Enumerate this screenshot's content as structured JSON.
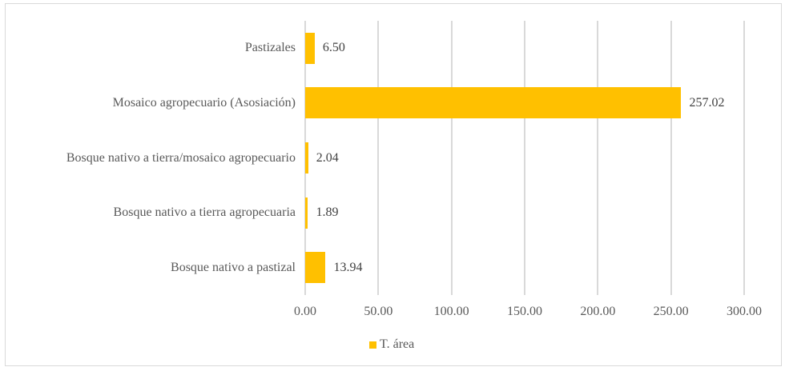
{
  "chart_data": {
    "type": "bar",
    "orientation": "horizontal",
    "title": "",
    "xlabel": "",
    "ylabel": "",
    "categories": [
      "Pastizales",
      "Mosaico agropecuario (Asosiación)",
      "Bosque nativo a tierra/mosaico agropecuario",
      "Bosque nativo a tierra agropecuaria",
      "Bosque nativo a pastizal"
    ],
    "series": [
      {
        "name": "T. área",
        "color": "#ffc000",
        "values": [
          6.5,
          257.02,
          2.04,
          1.89,
          13.94
        ]
      }
    ],
    "value_labels": [
      "6.50",
      "257.02",
      "2.04",
      "1.89",
      "13.94"
    ],
    "xlim": [
      0,
      300
    ],
    "x_ticks": [
      "0.00",
      "50.00",
      "100.00",
      "150.00",
      "200.00",
      "250.00",
      "300.00"
    ],
    "grid": true,
    "legend_position": "bottom"
  },
  "legend": {
    "label": "T. área",
    "color": "#ffc000"
  }
}
